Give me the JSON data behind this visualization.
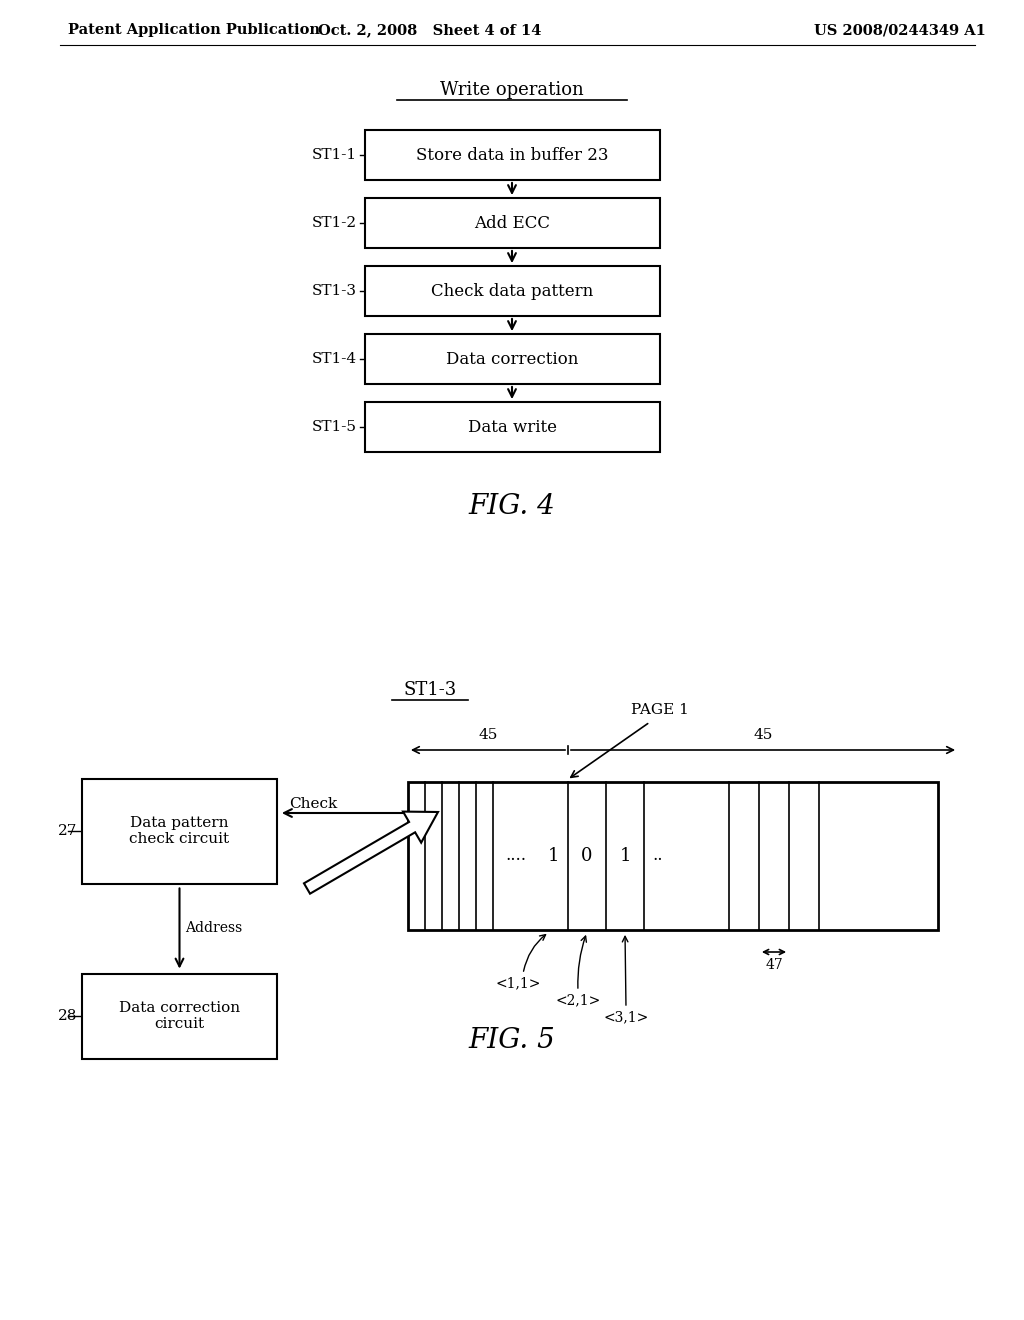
{
  "bg_color": "#ffffff",
  "header_left": "Patent Application Publication",
  "header_mid": "Oct. 2, 2008   Sheet 4 of 14",
  "header_right": "US 2008/0244349 A1",
  "fig4_title": "Write operation",
  "fig4_steps": [
    {
      "label": "ST1-1",
      "text": "Store data in buffer 23"
    },
    {
      "label": "ST1-2",
      "text": "Add ECC"
    },
    {
      "label": "ST1-3",
      "text": "Check data pattern"
    },
    {
      "label": "ST1-4",
      "text": "Data correction"
    },
    {
      "label": "ST1-5",
      "text": "Data write"
    }
  ],
  "fig4_caption": "FIG. 4",
  "fig5_title": "ST1-3",
  "fig5_caption": "FIG. 5",
  "fig5_box27_text": "Data pattern\ncheck circuit",
  "fig5_box28_text": "Data correction\ncircuit",
  "fig5_check_label": "Check",
  "fig5_address_label": "Address",
  "fig5_page1_label": "PAGE 1",
  "fig5_47_label": "47"
}
